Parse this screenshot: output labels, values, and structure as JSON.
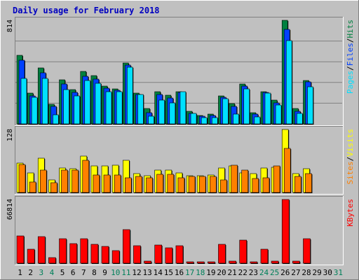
{
  "chart_data": {
    "type": "bar",
    "title": "Daily usage for February 2018",
    "days": [
      "1",
      "2",
      "3",
      "4",
      "5",
      "6",
      "7",
      "8",
      "9",
      "10",
      "11",
      "12",
      "13",
      "14",
      "15",
      "16",
      "17",
      "18",
      "19",
      "20",
      "21",
      "22",
      "23",
      "24",
      "25",
      "26",
      "27",
      "28",
      "29",
      "30",
      "31"
    ],
    "weekend_days": [
      "3",
      "4",
      "10",
      "11",
      "17",
      "18",
      "24",
      "25",
      "31"
    ],
    "panels": [
      {
        "id": "hits-files-pages",
        "ymax_label": "814",
        "ylim": [
          0,
          814
        ],
        "side_labels": [
          "Pages",
          "/",
          "Files",
          "/",
          "Hits"
        ],
        "series": [
          {
            "name": "Hits",
            "color": "#008040",
            "values": [
              540,
              240,
              440,
              155,
              345,
              270,
              410,
              380,
              295,
              275,
              480,
              240,
              120,
              255,
              225,
              255,
              100,
              65,
              75,
              220,
              160,
              315,
              90,
              255,
              185,
              814,
              120,
              340,
              null,
              null,
              null
            ]
          },
          {
            "name": "Files",
            "color": "#0040FF",
            "values": [
              500,
              220,
              400,
              135,
              315,
              250,
              375,
              350,
              280,
              265,
              460,
              230,
              90,
              230,
              205,
              245,
              85,
              60,
              65,
              210,
              135,
              295,
              75,
              245,
              165,
              740,
              100,
              330,
              null,
              null,
              null
            ]
          },
          {
            "name": "Pages",
            "color": "#00E0FF",
            "values": [
              360,
              210,
              360,
              70,
              270,
              220,
              340,
              320,
              255,
              255,
              445,
              230,
              60,
              185,
              165,
              255,
              80,
              50,
              50,
              200,
              75,
              275,
              55,
              240,
              150,
              655,
              85,
              290,
              null,
              null,
              null
            ]
          }
        ]
      },
      {
        "id": "visits-sites",
        "ymax_label": "128",
        "ylim": [
          0,
          128
        ],
        "side_labels": [
          "Sites",
          "/",
          "Visits"
        ],
        "series": [
          {
            "name": "Visits",
            "color": "#FFFF00",
            "values": [
              60,
              40,
              70,
              25,
              50,
              48,
              74,
              54,
              54,
              55,
              66,
              38,
              34,
              46,
              46,
              40,
              34,
              34,
              36,
              50,
              54,
              40,
              38,
              50,
              51,
              128,
              38,
              49,
              null,
              null,
              null
            ]
          },
          {
            "name": "Sites",
            "color": "#FF8000",
            "values": [
              57,
              21,
              45,
              20,
              46,
              46,
              66,
              35,
              35,
              35,
              30,
              33,
              30,
              37,
              37,
              30,
              33,
              32,
              32,
              25,
              56,
              45,
              28,
              30,
              54,
              90,
              33,
              38,
              null,
              null,
              null
            ]
          }
        ]
      },
      {
        "id": "kbytes",
        "ymax_label": "66814",
        "ylim": [
          0,
          66814
        ],
        "side_labels": [
          "KBytes"
        ],
        "series": [
          {
            "name": "KBytes",
            "color": "#FF0000",
            "values": [
              29000,
              14500,
              28000,
              6000,
              26000,
              20500,
              26000,
              20000,
              17500,
              13500,
              35500,
              18500,
              2500,
              19000,
              16500,
              18500,
              1500,
              1500,
              1500,
              19500,
              2500,
              24000,
              1500,
              15000,
              2500,
              66814,
              2500,
              25500,
              null,
              null,
              null
            ]
          }
        ]
      }
    ]
  }
}
